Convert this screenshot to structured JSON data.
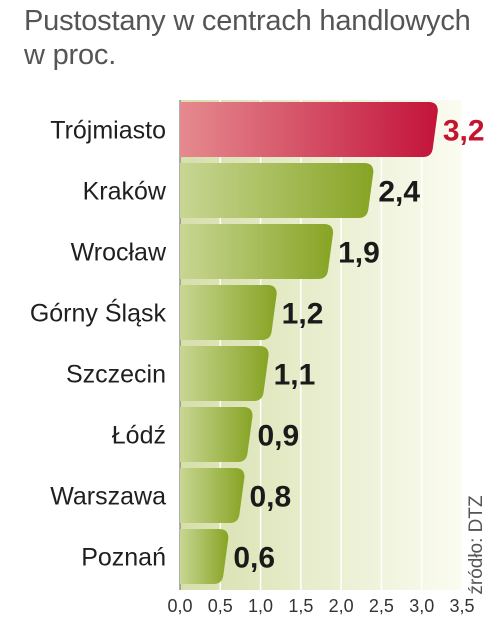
{
  "title_line1": "Pustostany w centrach handlowych",
  "title_line2": "w proc.",
  "source": "źródło: DTZ",
  "colors": {
    "highlight_bar": "#c81b3b",
    "bar": "#8fab2e",
    "highlight_value": "#c4142e",
    "background_band": "#eef1d6"
  },
  "chart_data": {
    "type": "bar",
    "orientation": "horizontal",
    "title": "Pustostany w centrach handlowych w proc.",
    "categories": [
      "Trójmiasto",
      "Kraków",
      "Wrocław",
      "Górny Śląsk",
      "Szczecin",
      "Łódź",
      "Warszawa",
      "Poznań"
    ],
    "values": [
      3.2,
      2.4,
      1.9,
      1.2,
      1.1,
      0.9,
      0.8,
      0.6
    ],
    "value_labels": [
      "3,2",
      "2,4",
      "1,9",
      "1,2",
      "1,1",
      "0,9",
      "0,8",
      "0,6"
    ],
    "highlight_index": 0,
    "xlim": [
      0,
      3.5
    ],
    "xticks": [
      0,
      0.5,
      1.0,
      1.5,
      2.0,
      2.5,
      3.0,
      3.5
    ],
    "xtick_labels": [
      "0,0",
      "0,5",
      "1,0",
      "1,5",
      "2,0",
      "2,5",
      "3,0",
      "3,5"
    ],
    "grid": true,
    "source": "źródło: DTZ"
  }
}
